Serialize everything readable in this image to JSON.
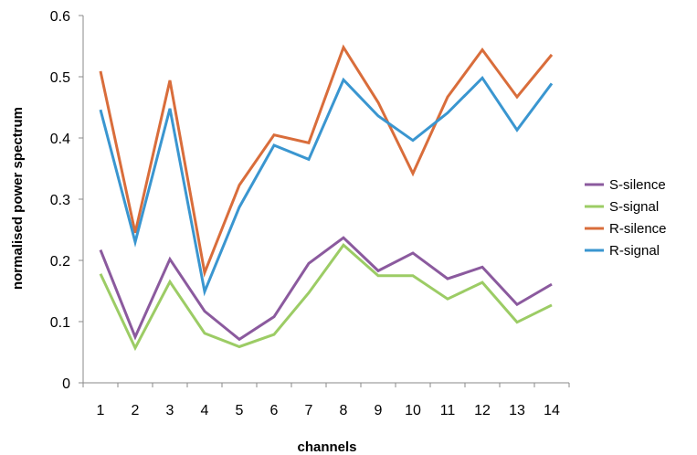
{
  "chart_data": {
    "type": "line",
    "title": "",
    "xlabel": "channels",
    "ylabel": "normalised power spectrum",
    "x": [
      1,
      2,
      3,
      4,
      5,
      6,
      7,
      8,
      9,
      10,
      11,
      12,
      13,
      14
    ],
    "ylim": [
      0,
      0.6
    ],
    "yticks": [
      "0",
      "0.1",
      "0.2",
      "0.3",
      "0.4",
      "0.5",
      "0.6"
    ],
    "grid": false,
    "legend_position": "right",
    "series": [
      {
        "name": "S-silence",
        "color": "#8b5a9e",
        "values": [
          0.217,
          0.075,
          0.202,
          0.117,
          0.071,
          0.108,
          0.195,
          0.237,
          0.183,
          0.212,
          0.17,
          0.189,
          0.128,
          0.161
        ]
      },
      {
        "name": "S-signal",
        "color": "#9ccc65",
        "values": [
          0.178,
          0.057,
          0.165,
          0.081,
          0.059,
          0.079,
          0.147,
          0.225,
          0.175,
          0.175,
          0.137,
          0.164,
          0.099,
          0.127
        ]
      },
      {
        "name": "R-silence",
        "color": "#d96d3b",
        "values": [
          0.509,
          0.245,
          0.494,
          0.18,
          0.323,
          0.405,
          0.392,
          0.548,
          0.458,
          0.342,
          0.467,
          0.544,
          0.467,
          0.536
        ]
      },
      {
        "name": "R-signal",
        "color": "#3a96d0",
        "values": [
          0.446,
          0.23,
          0.448,
          0.149,
          0.287,
          0.388,
          0.365,
          0.495,
          0.436,
          0.396,
          0.441,
          0.498,
          0.413,
          0.489
        ]
      }
    ]
  }
}
